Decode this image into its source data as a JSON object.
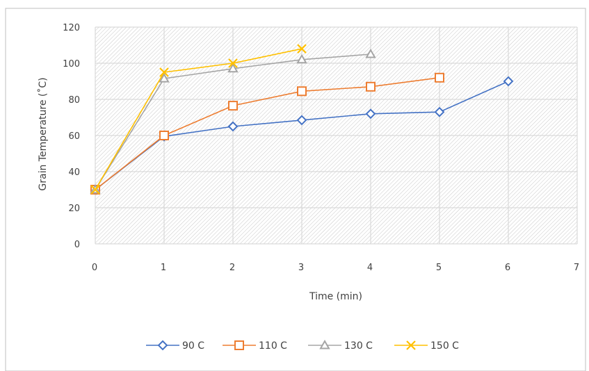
{
  "chart_data": {
    "type": "line",
    "xlabel": "Time (min)",
    "ylabel": "Grain Temperature (˚C)",
    "xlim": [
      0,
      7
    ],
    "ylim": [
      0,
      120
    ],
    "xticks": [
      "0",
      "1",
      "2",
      "3",
      "4",
      "5",
      "6",
      "7"
    ],
    "yticks": [
      "0",
      "20",
      "40",
      "60",
      "80",
      "100",
      "120"
    ],
    "grid": true,
    "legend_position": "bottom",
    "series": [
      {
        "name": "90 C",
        "color": "#4472C4",
        "marker": "diamond",
        "x": [
          0,
          1,
          2,
          3,
          4,
          5,
          6
        ],
        "y": [
          30,
          59.5,
          65,
          68.5,
          72,
          73,
          90
        ]
      },
      {
        "name": "110 C",
        "color": "#ED7D31",
        "marker": "square",
        "x": [
          0,
          1,
          2,
          3,
          4,
          5
        ],
        "y": [
          30,
          60,
          76.5,
          84.5,
          87,
          92
        ]
      },
      {
        "name": "130 C",
        "color": "#A5A5A5",
        "marker": "triangle",
        "x": [
          0,
          1,
          2,
          3,
          4
        ],
        "y": [
          30,
          91.5,
          97,
          102,
          105
        ]
      },
      {
        "name": "150 C",
        "color": "#FFC000",
        "marker": "cross",
        "x": [
          0,
          1,
          2,
          3
        ],
        "y": [
          30,
          95,
          100,
          108
        ]
      }
    ]
  }
}
